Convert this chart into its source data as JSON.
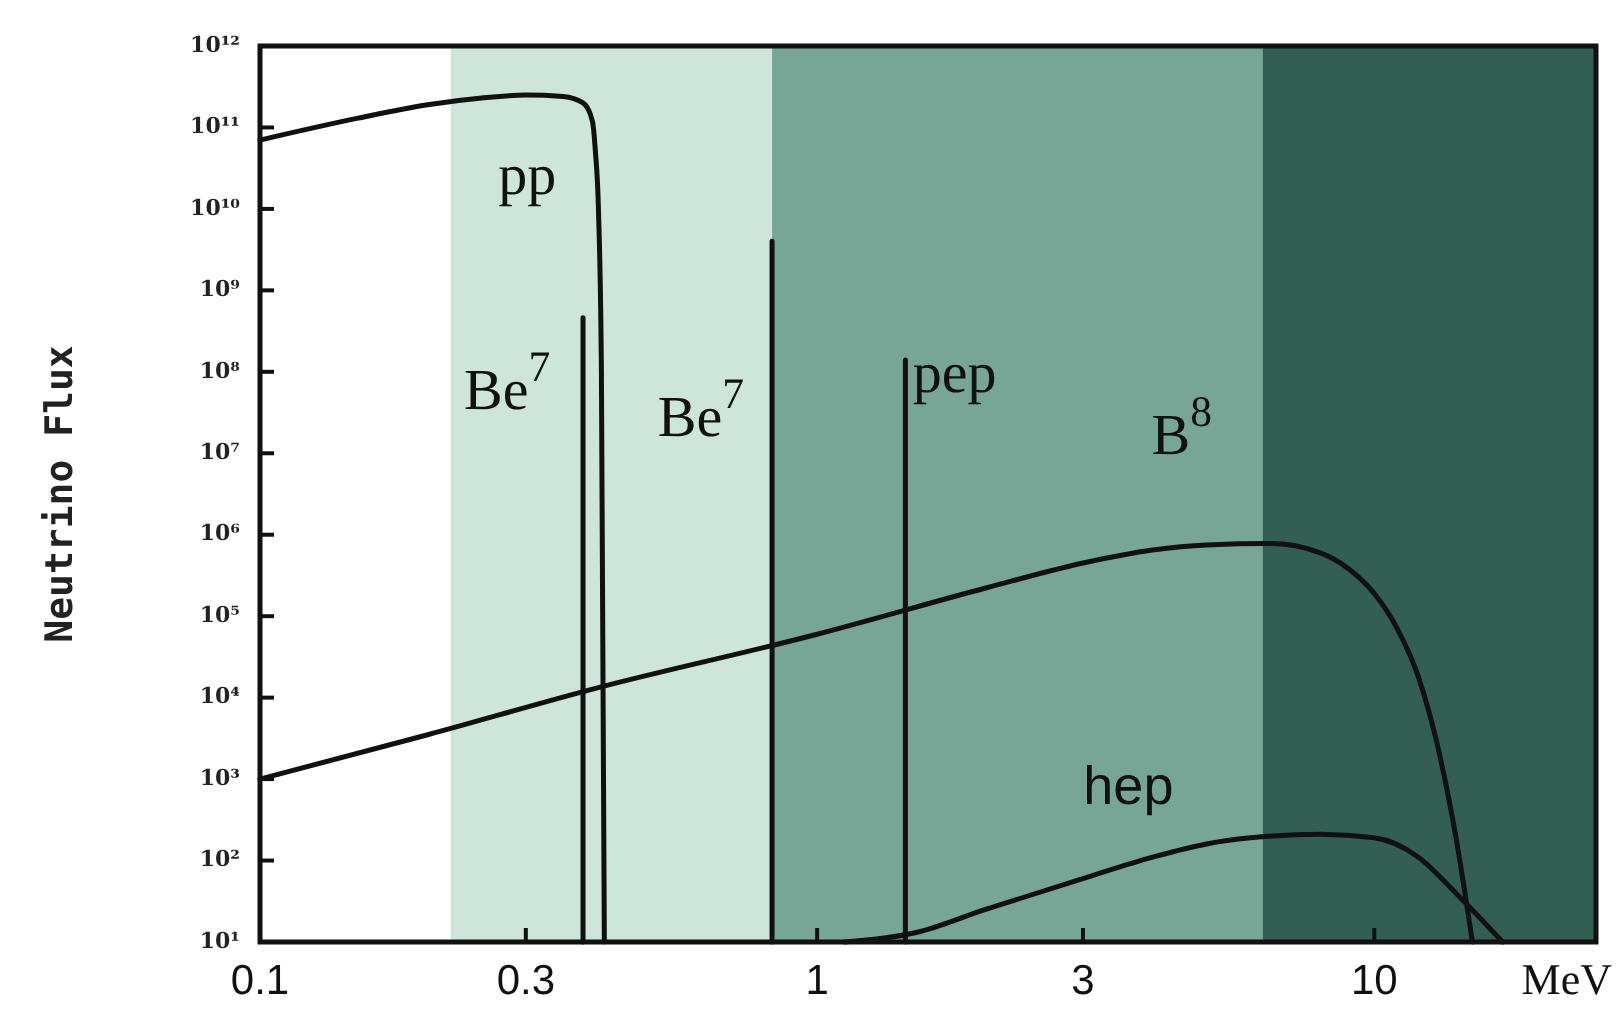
{
  "chart_data": {
    "type": "line",
    "xlabel": "MeV",
    "ylabel": "Neutrino Flux",
    "log": "xy",
    "grid": false,
    "marker": "none",
    "line_style": "solid",
    "xlim": [
      0.1,
      25
    ],
    "xticks": [
      0.1,
      0.3,
      1,
      3,
      10
    ],
    "ylim": [
      10,
      1000000000000.0
    ],
    "yticks": [
      {
        "value": 10,
        "label": "10¹"
      },
      {
        "value": 100,
        "label": "10²"
      },
      {
        "value": 1000,
        "label": "10³"
      },
      {
        "value": 10000,
        "label": "10⁴"
      },
      {
        "value": 100000,
        "label": "10⁵"
      },
      {
        "value": 1000000,
        "label": "10⁶"
      },
      {
        "value": 10000000,
        "label": "10⁷"
      },
      {
        "value": 100000000,
        "label": "10⁸"
      },
      {
        "value": 1000000000,
        "label": "10⁹"
      },
      {
        "value": 10000000000,
        "label": "10¹⁰"
      },
      {
        "value": 100000000000,
        "label": "10¹¹"
      },
      {
        "value": 1000000000000,
        "label": "10¹²"
      }
    ],
    "bands": [
      {
        "axis": "x",
        "from": 0.22,
        "to": 0.83,
        "color": "#cde6d9"
      },
      {
        "axis": "x",
        "from": 0.83,
        "to": 6.3,
        "color": "#77a696"
      },
      {
        "axis": "x",
        "from": 6.3,
        "to": 25,
        "color": "#335e54"
      }
    ],
    "series": [
      {
        "name": "pp",
        "color": "#111111",
        "x": [
          0.1,
          0.15,
          0.2,
          0.25,
          0.3,
          0.35,
          0.38,
          0.395,
          0.4,
          0.405,
          0.41,
          0.415
        ],
        "values": [
          70000000000.0,
          130000000000.0,
          190000000000.0,
          230000000000.0,
          250000000000.0,
          240000000000.0,
          200000000000.0,
          120000000000.0,
          50000000000.0,
          10000000000.0,
          100000000.0,
          10
        ]
      },
      {
        "name": "Be$^{7}$",
        "color": "#111111",
        "x": [
          0.38,
          0.38
        ],
        "values": [
          10,
          460000000.0
        ]
      },
      {
        "name": "Be$^{7}$",
        "color": "#111111",
        "x": [
          0.83,
          0.83
        ],
        "values": [
          10,
          4000000000.0
        ]
      },
      {
        "name": "pep",
        "color": "#111111",
        "x": [
          1.44,
          1.44
        ],
        "values": [
          10,
          140000000.0
        ]
      },
      {
        "name": "B$^{8}$",
        "color": "#111111",
        "x": [
          0.1,
          0.2,
          0.4,
          1,
          2,
          3,
          4,
          5,
          6.5,
          8,
          9,
          10,
          11,
          12,
          13,
          14,
          15
        ],
        "values": [
          1000,
          3500,
          13000,
          60000,
          220000,
          450000,
          650000,
          750000,
          780000,
          600000,
          380000,
          190000,
          70000,
          18000,
          2500,
          200,
          10
        ]
      },
      {
        "name": "hep",
        "color": "#111111",
        "x": [
          1.12,
          1.5,
          2,
          3,
          4,
          5,
          6,
          8,
          10,
          12,
          14,
          17
        ],
        "values": [
          10,
          13,
          25,
          60,
          110,
          160,
          190,
          210,
          190,
          110,
          40,
          10
        ]
      }
    ]
  }
}
